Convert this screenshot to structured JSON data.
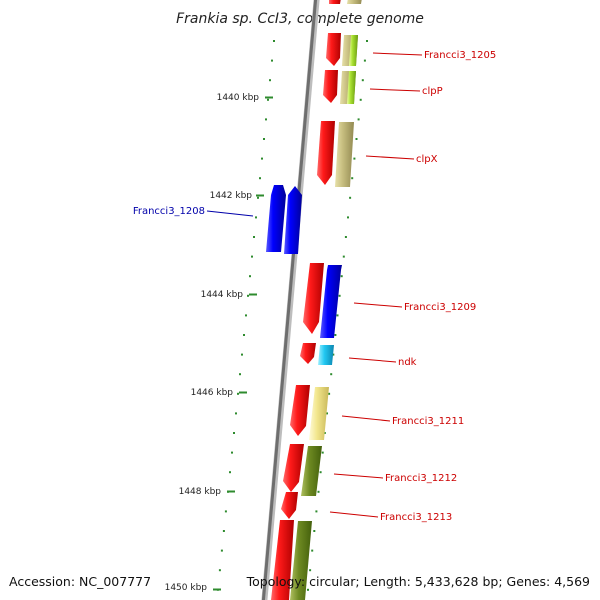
{
  "title": "Frankia sp. CcI3, complete genome",
  "accession_text": "Accession: NC_007777",
  "topology_text": "Topology: circular; Length: 5,433,628 bp; Genes: 4,569",
  "colors": {
    "forward_gene": "#ff0000",
    "reverse_gene": "#0000ff",
    "axis": "#888888",
    "tick": "#2e8b2e",
    "label_forward": "#cc0000",
    "label_reverse": "#0000aa"
  },
  "kbp_ticks": [
    {
      "label": "1440 kbp"
    },
    {
      "label": "1442 kbp"
    },
    {
      "label": "1444 kbp"
    },
    {
      "label": "1446 kbp"
    },
    {
      "label": "1448 kbp"
    },
    {
      "label": "1450 kbp"
    }
  ],
  "genes": [
    {
      "name": "Francci3_1205",
      "strand": "+"
    },
    {
      "name": "clpP",
      "strand": "+"
    },
    {
      "name": "clpX",
      "strand": "+"
    },
    {
      "name": "Francci3_1208",
      "strand": "-"
    },
    {
      "name": "Francci3_1209",
      "strand": "+"
    },
    {
      "name": "ndk",
      "strand": "+"
    },
    {
      "name": "Francci3_1211",
      "strand": "+"
    },
    {
      "name": "Francci3_1212",
      "strand": "+"
    },
    {
      "name": "Francci3_1213",
      "strand": "+"
    }
  ]
}
